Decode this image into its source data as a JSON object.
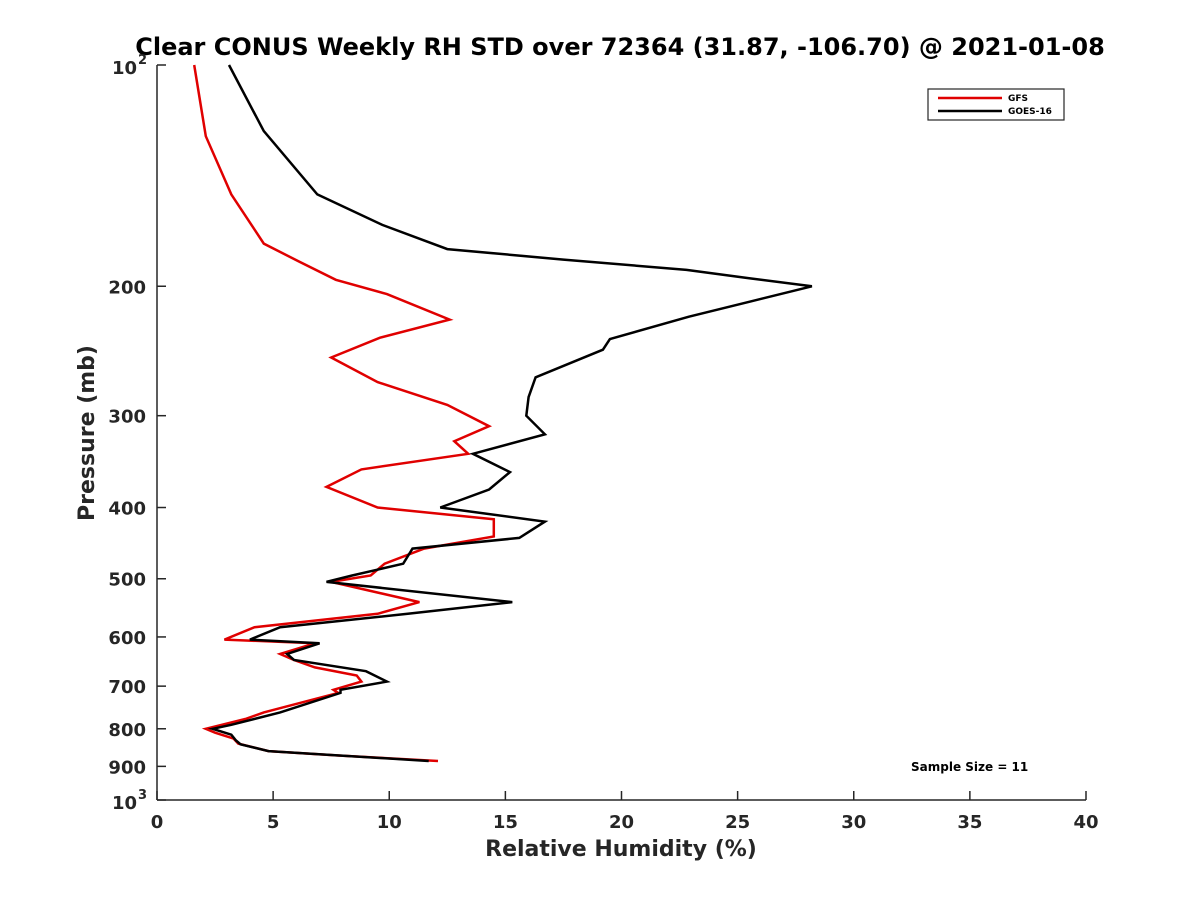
{
  "chart_data": {
    "type": "line",
    "title": "Clear CONUS Weekly RH STD over 72364 (31.87, -106.70) @ 2021-01-08",
    "xlabel": "Relative Humidity (%)",
    "ylabel": "Pressure (mb)",
    "xlim": [
      0,
      40
    ],
    "ylim": [
      100,
      1000
    ],
    "y_scale": "log",
    "y_reversed": true,
    "x_ticks": [
      "0",
      "5",
      "10",
      "15",
      "20",
      "25",
      "30",
      "35",
      "40"
    ],
    "y_ticks": [
      {
        "value": 100,
        "base": "10",
        "exp": "2"
      },
      {
        "value": 200,
        "label": "200"
      },
      {
        "value": 300,
        "label": "300"
      },
      {
        "value": 400,
        "label": "400"
      },
      {
        "value": 500,
        "label": "500"
      },
      {
        "value": 600,
        "label": "600"
      },
      {
        "value": 700,
        "label": "700"
      },
      {
        "value": 800,
        "label": "800"
      },
      {
        "value": 900,
        "label": "900"
      },
      {
        "value": 1000,
        "base": "10",
        "exp": "3"
      }
    ],
    "legend": {
      "position": "top-right"
    },
    "annotation": "Sample Size = 11",
    "grid": false,
    "series": [
      {
        "name": "GFS",
        "color": "#e00000",
        "points": [
          [
            1.6,
            100
          ],
          [
            2.1,
            125
          ],
          [
            3.2,
            150
          ],
          [
            4.6,
            175
          ],
          [
            6.1,
            185
          ],
          [
            7.7,
            196
          ],
          [
            9.9,
            205
          ],
          [
            12.6,
            222
          ],
          [
            9.6,
            235
          ],
          [
            7.5,
            250
          ],
          [
            9.5,
            270
          ],
          [
            12.5,
            290
          ],
          [
            14.3,
            310
          ],
          [
            12.8,
            325
          ],
          [
            13.4,
            338
          ],
          [
            8.8,
            355
          ],
          [
            7.3,
            375
          ],
          [
            9.5,
            400
          ],
          [
            14.5,
            415
          ],
          [
            14.5,
            438
          ],
          [
            11.5,
            455
          ],
          [
            9.8,
            477
          ],
          [
            9.2,
            495
          ],
          [
            7.5,
            505
          ],
          [
            11.3,
            538
          ],
          [
            9.5,
            558
          ],
          [
            4.2,
            582
          ],
          [
            2.9,
            605
          ],
          [
            6.8,
            612
          ],
          [
            5.3,
            633
          ],
          [
            5.9,
            645
          ],
          [
            6.8,
            660
          ],
          [
            8.6,
            677
          ],
          [
            8.8,
            690
          ],
          [
            7.6,
            708
          ],
          [
            7.8,
            715
          ],
          [
            4.6,
            760
          ],
          [
            3.8,
            776
          ],
          [
            2.1,
            800
          ],
          [
            2.5,
            810
          ],
          [
            3.3,
            825
          ],
          [
            3.5,
            838
          ],
          [
            4.8,
            858
          ],
          [
            7.8,
            870
          ],
          [
            12.1,
            885
          ]
        ]
      },
      {
        "name": "GOES-16",
        "color": "#000000",
        "points": [
          [
            3.1,
            100
          ],
          [
            4.6,
            123
          ],
          [
            6.9,
            150
          ],
          [
            9.7,
            165
          ],
          [
            12.5,
            178
          ],
          [
            17.5,
            184
          ],
          [
            22.8,
            190
          ],
          [
            25.5,
            195
          ],
          [
            28.2,
            200
          ],
          [
            25.5,
            210
          ],
          [
            22.9,
            220
          ],
          [
            19.5,
            236
          ],
          [
            19.2,
            244
          ],
          [
            16.3,
            266
          ],
          [
            16.0,
            283
          ],
          [
            15.9,
            300
          ],
          [
            16.7,
            318
          ],
          [
            13.6,
            338
          ],
          [
            15.2,
            358
          ],
          [
            14.3,
            378
          ],
          [
            12.2,
            400
          ],
          [
            16.7,
            418
          ],
          [
            15.6,
            440
          ],
          [
            11.0,
            455
          ],
          [
            10.6,
            477
          ],
          [
            8.4,
            495
          ],
          [
            7.3,
            505
          ],
          [
            15.3,
            538
          ],
          [
            10.8,
            558
          ],
          [
            5.3,
            582
          ],
          [
            4.0,
            605
          ],
          [
            7.0,
            612
          ],
          [
            5.6,
            633
          ],
          [
            5.9,
            645
          ],
          [
            9.0,
            668
          ],
          [
            9.9,
            690
          ],
          [
            7.9,
            708
          ],
          [
            7.9,
            715
          ],
          [
            5.3,
            760
          ],
          [
            3.2,
            790
          ],
          [
            2.4,
            800
          ],
          [
            3.2,
            815
          ],
          [
            3.4,
            830
          ],
          [
            3.6,
            840
          ],
          [
            4.8,
            858
          ],
          [
            11.7,
            885
          ]
        ]
      }
    ]
  }
}
